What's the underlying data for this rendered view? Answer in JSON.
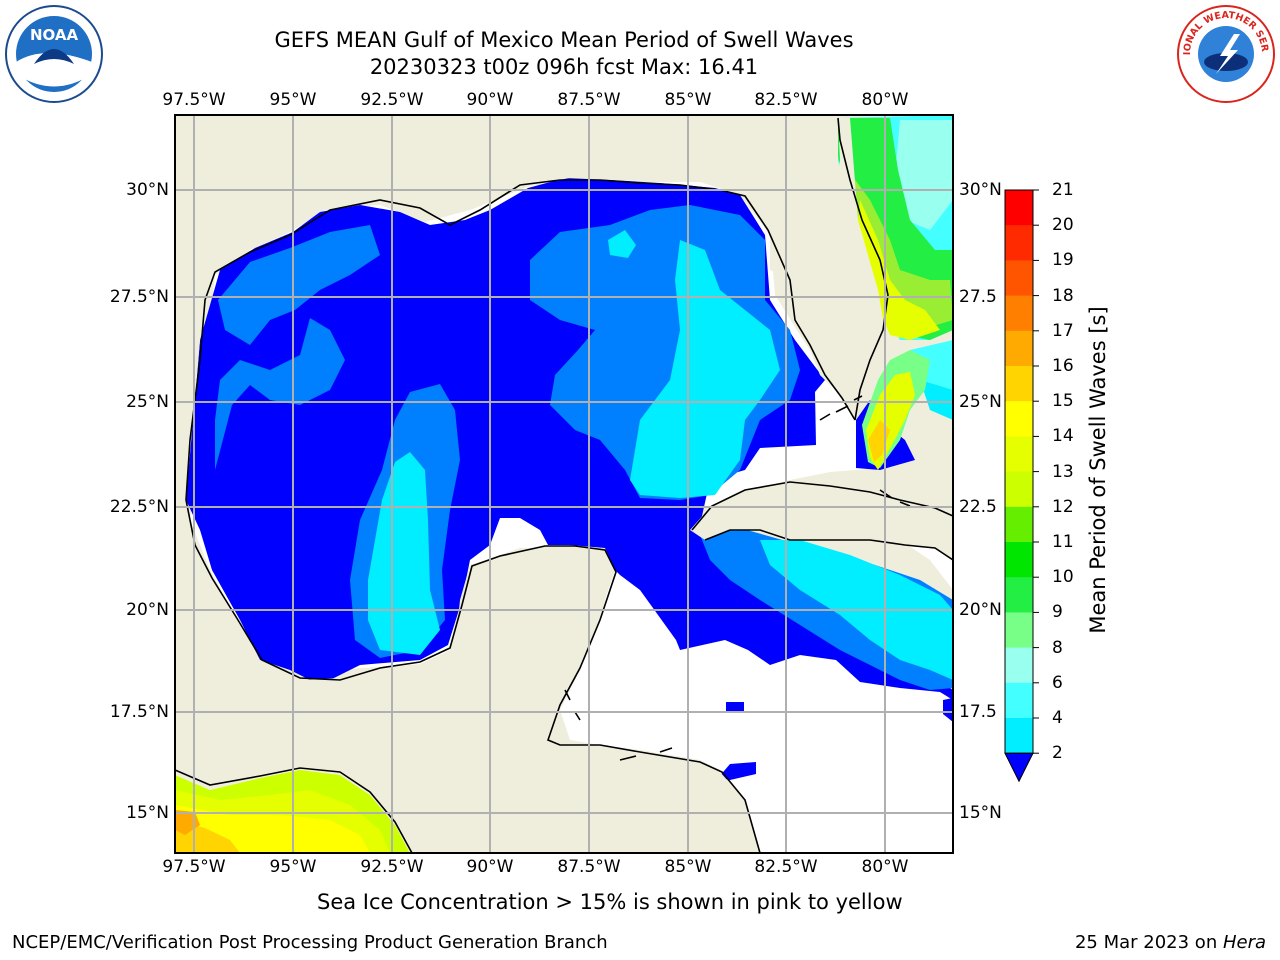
{
  "header": {
    "title_line1": "GEFS MEAN Gulf of Mexico Mean Period of Swell Waves",
    "title_line2": "20230323 t00z 096h fcst   Max: 16.41"
  },
  "map": {
    "lon_labels": [
      "97.5°W",
      "95°W",
      "92.5°W",
      "90°W",
      "87.5°W",
      "85°W",
      "82.5°W",
      "80°W"
    ],
    "lat_labels_left": [
      "30°N",
      "27.5°N",
      "25°N",
      "22.5°N",
      "20°N",
      "17.5°N",
      "15°N"
    ],
    "lat_labels_right": [
      "30°N",
      "27.5",
      "25°N",
      "22.5",
      "20°N",
      "17.5",
      "15°N"
    ],
    "colors": {
      "land": "#efeedc",
      "grid": "#b0b0b0"
    }
  },
  "colorbar": {
    "title": "Mean Period of Swell Waves [s]",
    "ticks": [
      "21",
      "20",
      "19",
      "18",
      "17",
      "16",
      "15",
      "14",
      "13",
      "12",
      "11",
      "10",
      "9",
      "8",
      "6",
      "4",
      "2"
    ],
    "colors": [
      "#ff0000",
      "#ff2a00",
      "#ff5500",
      "#ff8000",
      "#ffaa00",
      "#ffd400",
      "#ffff00",
      "#e6ff00",
      "#ccff00",
      "#66ee00",
      "#00e600",
      "#22ee44",
      "#77ff88",
      "#99ffee",
      "#44ffff",
      "#00eeff",
      "#0080ff",
      "#0000ff"
    ]
  },
  "notes": {
    "ice_note": "Sea Ice Concentration > 15% is shown in pink to yellow"
  },
  "footer": {
    "left": "NCEP/EMC/Verification Post Processing Product Generation Branch",
    "date": "25 Mar 2023 on ",
    "host": "Hera"
  },
  "logos": {
    "noaa": "NOAA",
    "nws": "NATIONAL WEATHER SERVICE"
  }
}
